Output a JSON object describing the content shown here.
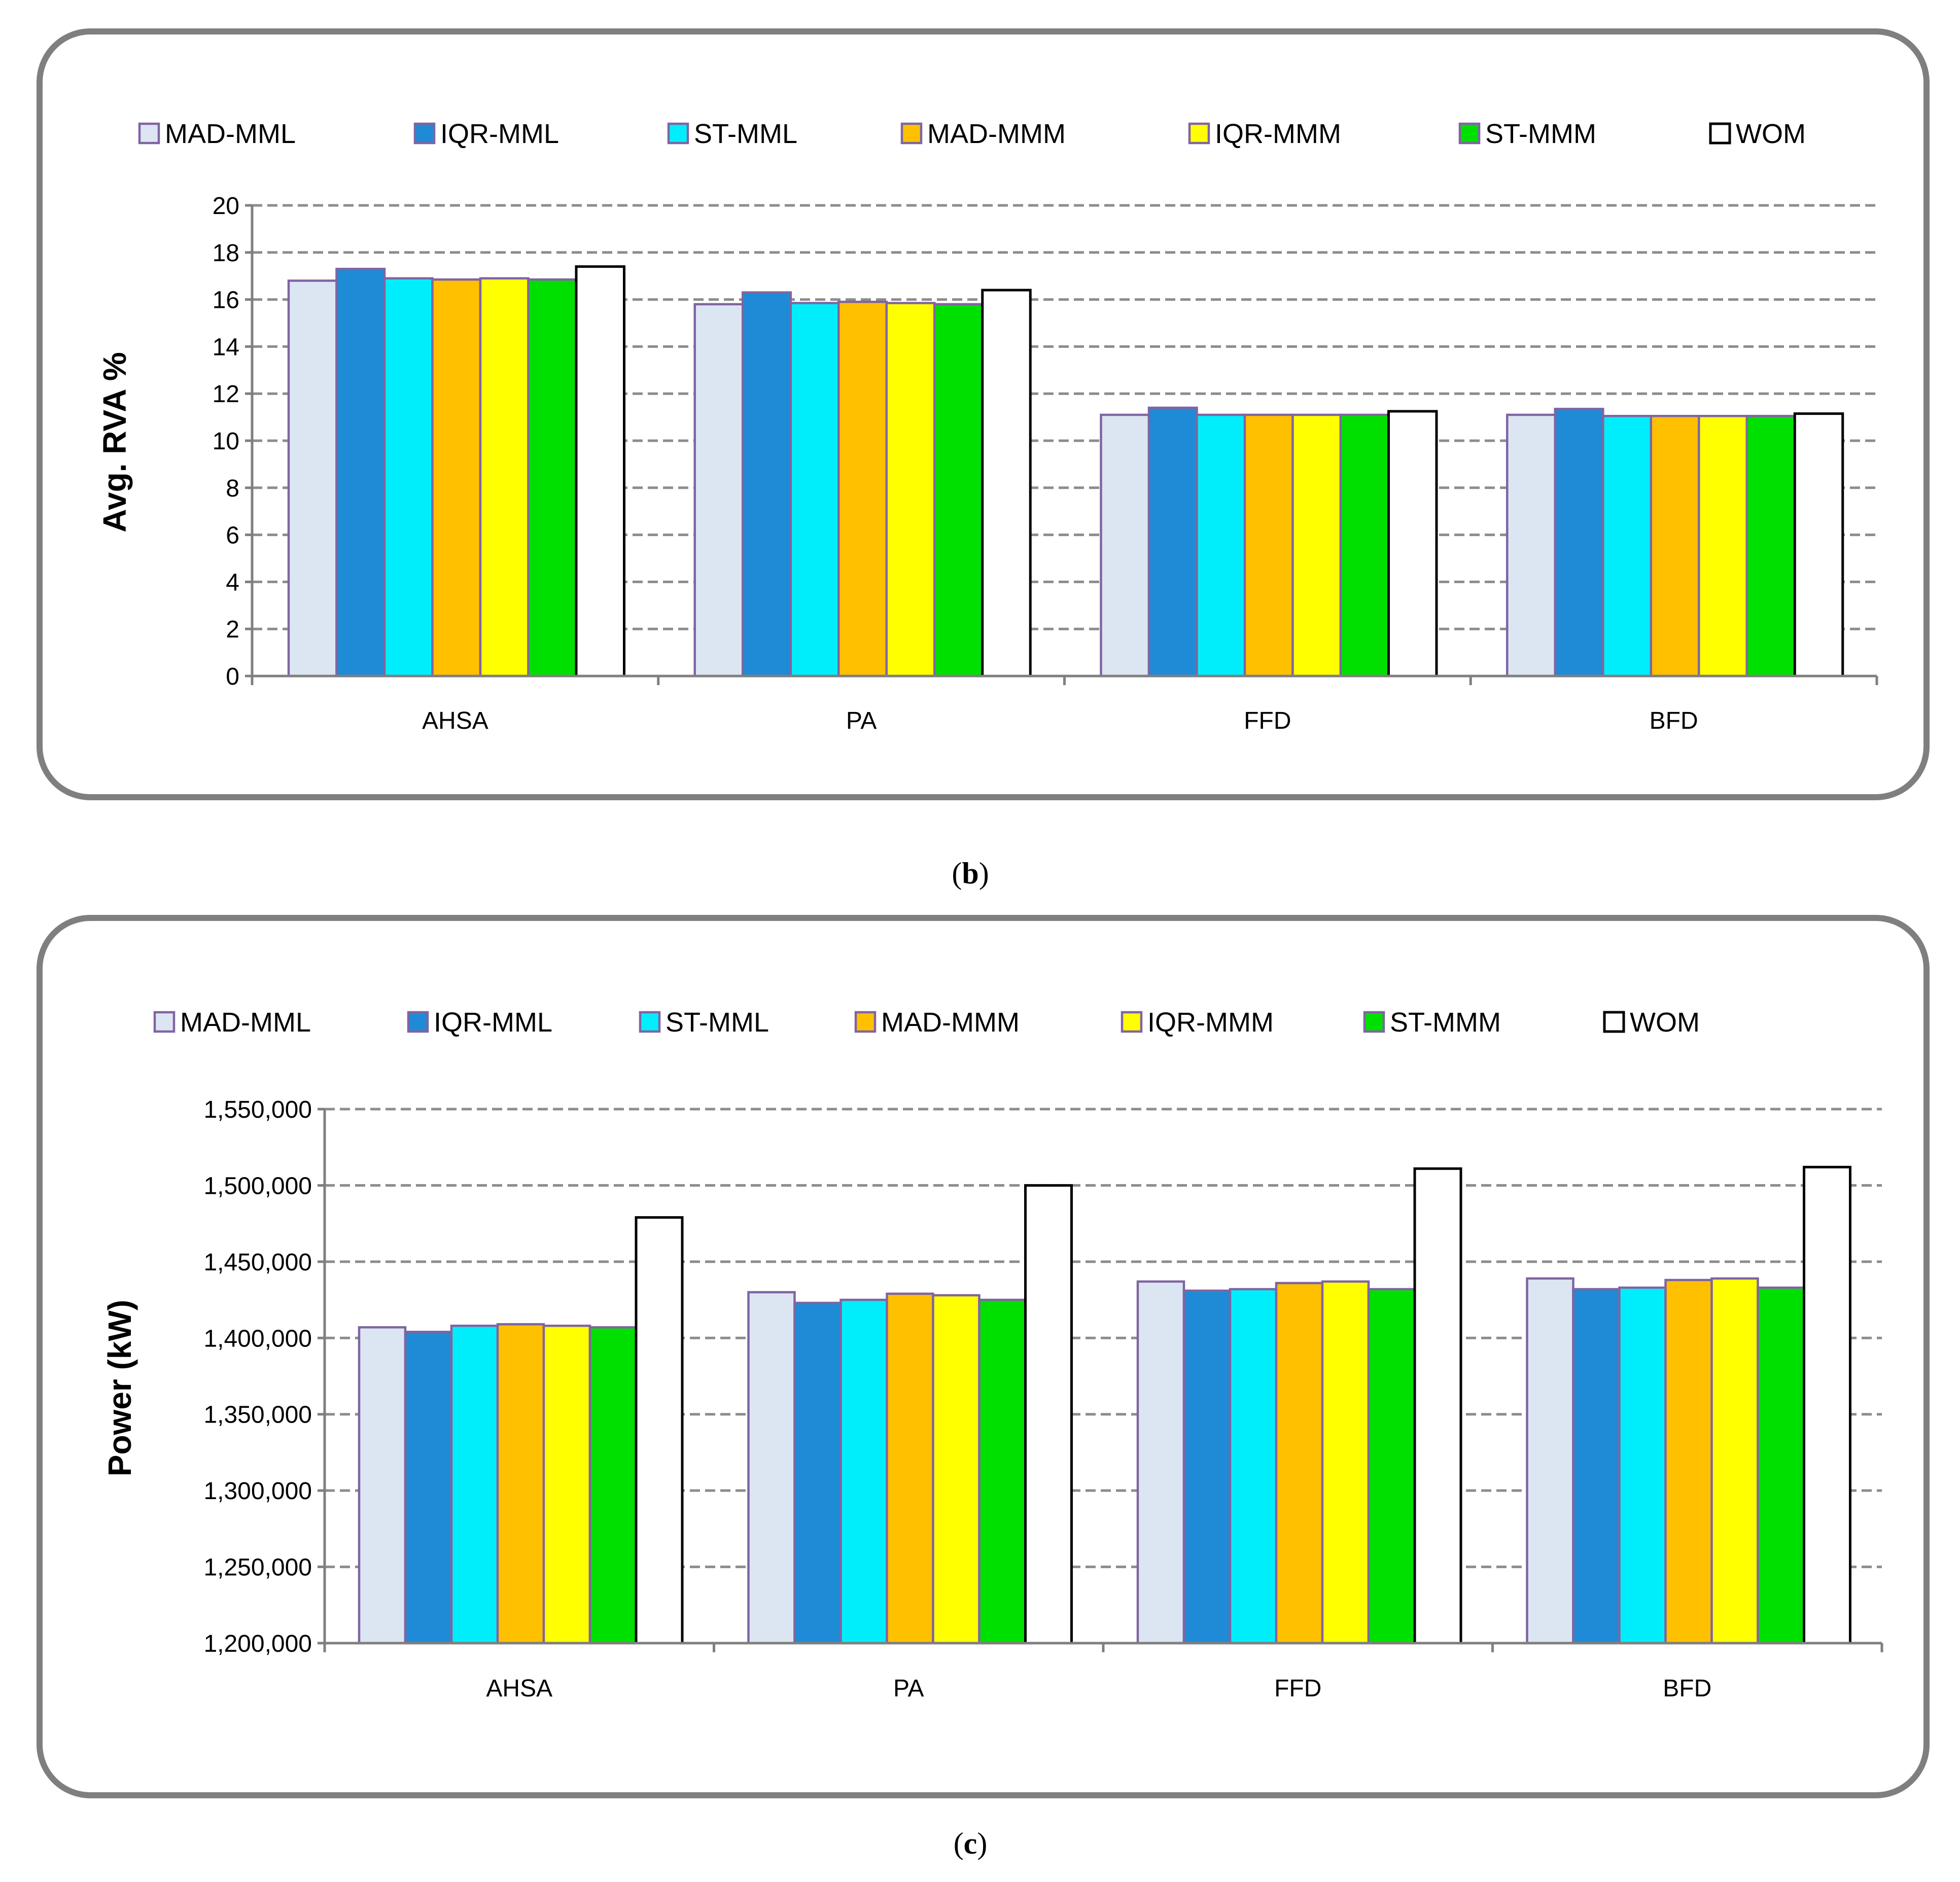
{
  "colors": {
    "MAD-MML": "#dce6f2",
    "IQR-MML": "#1f8bd6",
    "ST-MML": "#00eefc",
    "MAD-MMM": "#ffc000",
    "IQR-MMM": "#ffff00",
    "ST-MMM": "#00e000",
    "WOM": "#ffffff"
  },
  "chart_data": [
    {
      "type": "bar",
      "panel_label": "b",
      "ylabel": "Avg. RVA %",
      "categories": [
        "AHSA",
        "PA",
        "FFD",
        "BFD"
      ],
      "ylim": [
        0,
        20
      ],
      "yticks": [
        "0",
        "2",
        "4",
        "6",
        "8",
        "10",
        "12",
        "14",
        "16",
        "18",
        "20"
      ],
      "grid": true,
      "legend_position": "top",
      "series": [
        {
          "name": "MAD-MML",
          "values": [
            16.8,
            15.8,
            11.1,
            11.1
          ]
        },
        {
          "name": "IQR-MML",
          "values": [
            17.3,
            16.3,
            11.4,
            11.35
          ]
        },
        {
          "name": "ST-MML",
          "values": [
            16.9,
            15.85,
            11.1,
            11.05
          ]
        },
        {
          "name": "MAD-MMM",
          "values": [
            16.85,
            15.9,
            11.1,
            11.05
          ]
        },
        {
          "name": "IQR-MMM",
          "values": [
            16.9,
            15.85,
            11.1,
            11.05
          ]
        },
        {
          "name": "ST-MMM",
          "values": [
            16.85,
            15.8,
            11.1,
            11.05
          ]
        },
        {
          "name": "WOM",
          "values": [
            17.4,
            16.4,
            11.25,
            11.15
          ]
        }
      ]
    },
    {
      "type": "bar",
      "panel_label": "c",
      "ylabel": "Power (kW)",
      "categories": [
        "AHSA",
        "PA",
        "FFD",
        "BFD"
      ],
      "ylim": [
        1200000,
        1550000
      ],
      "yticks": [
        "1,200,000",
        "1,250,000",
        "1,300,000",
        "1,350,000",
        "1,400,000",
        "1,450,000",
        "1,500,000",
        "1,550,000"
      ],
      "grid": true,
      "legend_position": "top",
      "series": [
        {
          "name": "MAD-MML",
          "values": [
            1407000,
            1430000,
            1437000,
            1439000
          ]
        },
        {
          "name": "IQR-MML",
          "values": [
            1404000,
            1423000,
            1431000,
            1432000
          ]
        },
        {
          "name": "ST-MML",
          "values": [
            1408000,
            1425000,
            1432000,
            1433000
          ]
        },
        {
          "name": "MAD-MMM",
          "values": [
            1409000,
            1429000,
            1436000,
            1438000
          ]
        },
        {
          "name": "IQR-MMM",
          "values": [
            1408000,
            1428000,
            1437000,
            1439000
          ]
        },
        {
          "name": "ST-MMM",
          "values": [
            1407000,
            1425000,
            1432000,
            1433000
          ]
        },
        {
          "name": "WOM",
          "values": [
            1479000,
            1500000,
            1511000,
            1512000
          ]
        }
      ]
    }
  ]
}
